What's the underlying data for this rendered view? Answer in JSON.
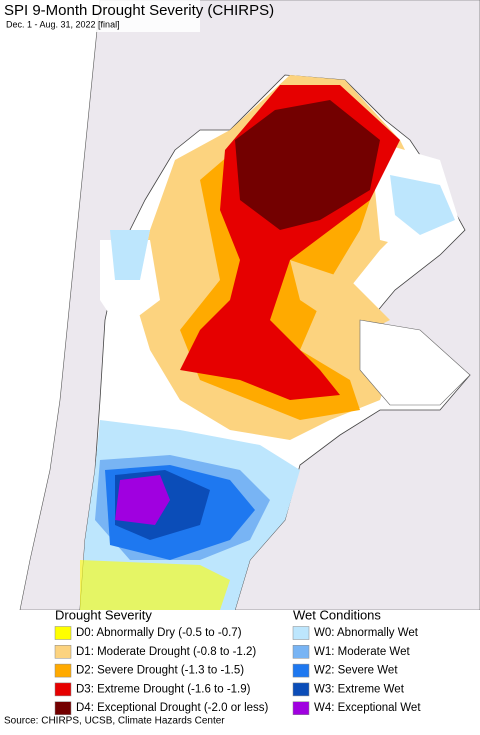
{
  "header": {
    "title": "SPI 9-Month Drought Severity (CHIRPS)",
    "subtitle": "Dec. 1 - Aug. 31, 2022 [final]"
  },
  "legend": {
    "groups": [
      {
        "title": "Drought Severity",
        "items": [
          {
            "label": "D0: Abnormally Dry (-0.5 to -0.7)",
            "color": "#ffff00"
          },
          {
            "label": "D1: Moderate Drought (-0.8 to -1.2)",
            "color": "#fcd37f"
          },
          {
            "label": "D2: Severe Drought (-1.3 to -1.5)",
            "color": "#ffaa00"
          },
          {
            "label": "D3: Extreme Drought (-1.6 to -1.9)",
            "color": "#e60000"
          },
          {
            "label": "D4: Exceptional Drought (-2.0 or less)",
            "color": "#730000"
          }
        ]
      },
      {
        "title": "Wet Conditions",
        "items": [
          {
            "label": "W0: Abnormally Wet",
            "color": "#bde6fd"
          },
          {
            "label": "W1: Moderate Wet",
            "color": "#78b4f4"
          },
          {
            "label": "W2: Severe Wet",
            "color": "#1e78f0"
          },
          {
            "label": "W3: Extreme Wet",
            "color": "#0b4db8"
          },
          {
            "label": "W4: Exceptional Wet",
            "color": "#a000e0"
          }
        ]
      }
    ]
  },
  "footer": {
    "source": "Source: CHIRPS, UCSB, Climate Hazards Center"
  }
}
